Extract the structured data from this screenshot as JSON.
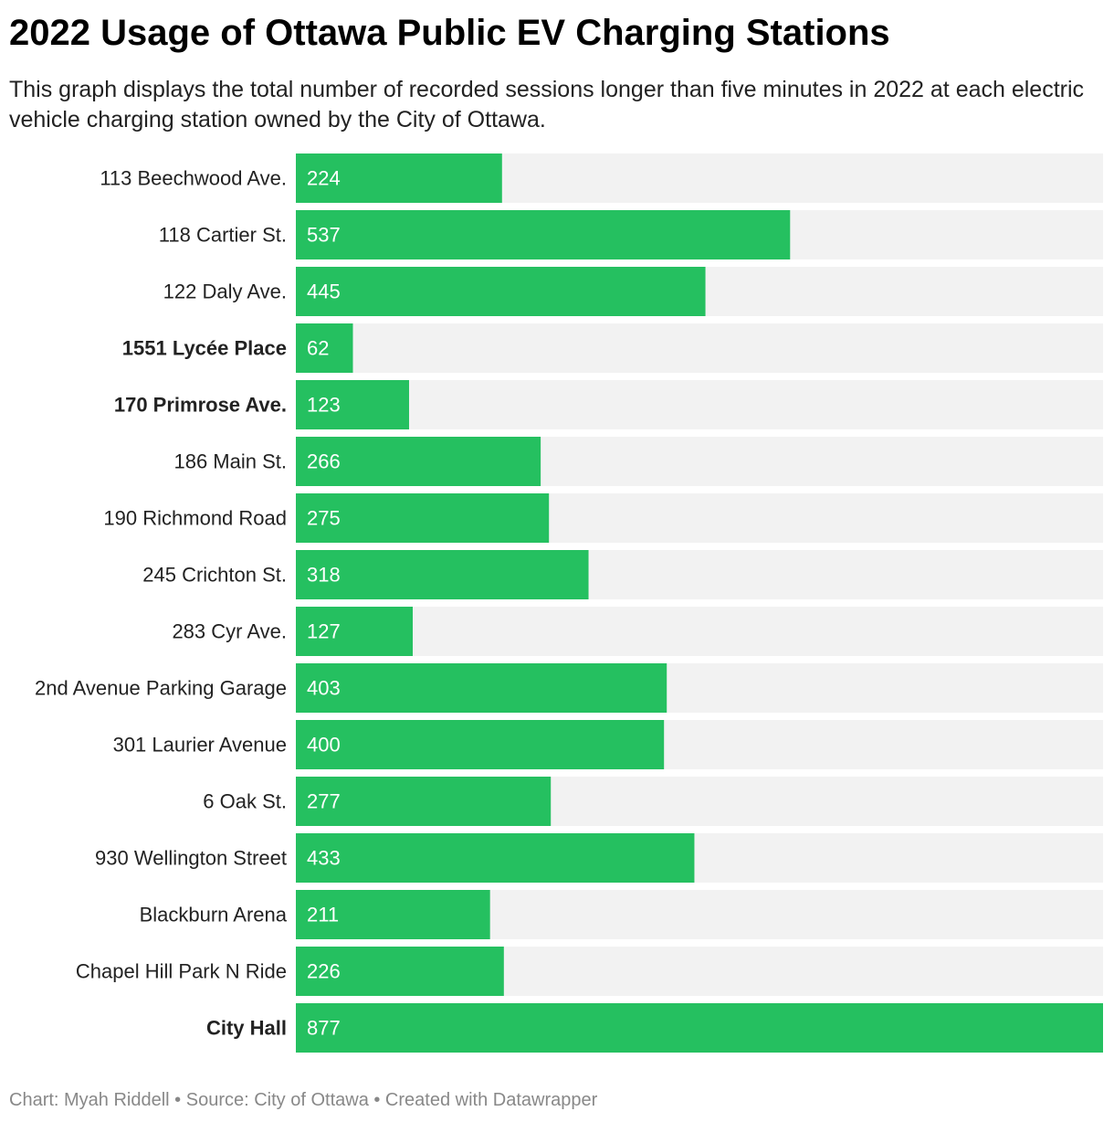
{
  "chart_data": {
    "type": "bar",
    "orientation": "horizontal",
    "title": "2022 Usage of Ottawa Public EV Charging Stations",
    "subtitle": "This graph displays the total number of recorded sessions longer than five minutes in 2022 at each electric vehicle charging station owned by the City of Ottawa.",
    "categories": [
      "113 Beechwood Ave.",
      "118 Cartier St.",
      "122 Daly Ave.",
      "1551 Lycée Place",
      "170 Primrose Ave.",
      "186 Main St.",
      "190 Richmond Road",
      "245 Crichton St.",
      "283 Cyr Ave.",
      "2nd Avenue Parking Garage",
      "301 Laurier Avenue",
      "6 Oak St.",
      "930 Wellington Street",
      "Blackburn Arena",
      "Chapel Hill Park N Ride",
      "City Hall"
    ],
    "values": [
      224,
      537,
      445,
      62,
      123,
      266,
      275,
      318,
      127,
      403,
      400,
      277,
      433,
      211,
      226,
      877
    ],
    "bold_categories": [
      "1551 Lycée Place",
      "170 Primrose Ave.",
      "City Hall"
    ],
    "xlim": [
      0,
      877
    ],
    "grid": false,
    "legend": "none",
    "colors": {
      "bar": "#25c060",
      "background_bar": "#f2f2f2",
      "value_label": "#ffffff"
    }
  },
  "footer": {
    "credit": "Chart: Myah Riddell • Source: City of Ottawa • Created with Datawrapper"
  }
}
